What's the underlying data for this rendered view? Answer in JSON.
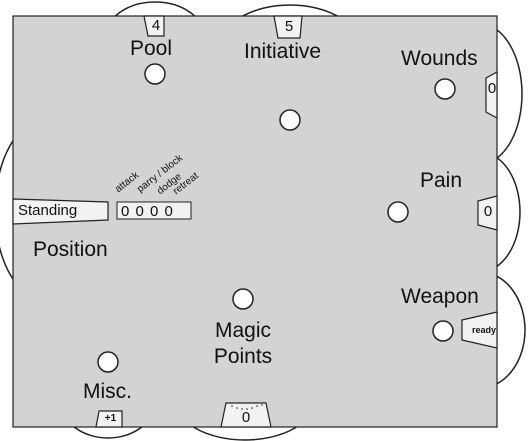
{
  "board": {
    "pool": {
      "label": "Pool",
      "value": "4"
    },
    "initiative": {
      "label": "Initiative",
      "value": "5"
    },
    "wounds": {
      "label": "Wounds",
      "value": "0"
    },
    "pain": {
      "label": "Pain",
      "value": "0"
    },
    "position": {
      "label": "Position",
      "value": "Standing"
    },
    "defense": {
      "headers": [
        "attack",
        "parry / block",
        "dodge",
        "retreat"
      ],
      "values": "0 0 0 0"
    },
    "weapon": {
      "label": "Weapon",
      "value": "ready"
    },
    "magic": {
      "label_line1": "Magic",
      "label_line2": "Points",
      "value": "0"
    },
    "misc": {
      "label": "Misc.",
      "value": "+1"
    }
  },
  "colors": {
    "board": "#d3d3d3",
    "tab": "#f2f2f2",
    "stroke": "#222222",
    "peg": "#ffffff"
  }
}
